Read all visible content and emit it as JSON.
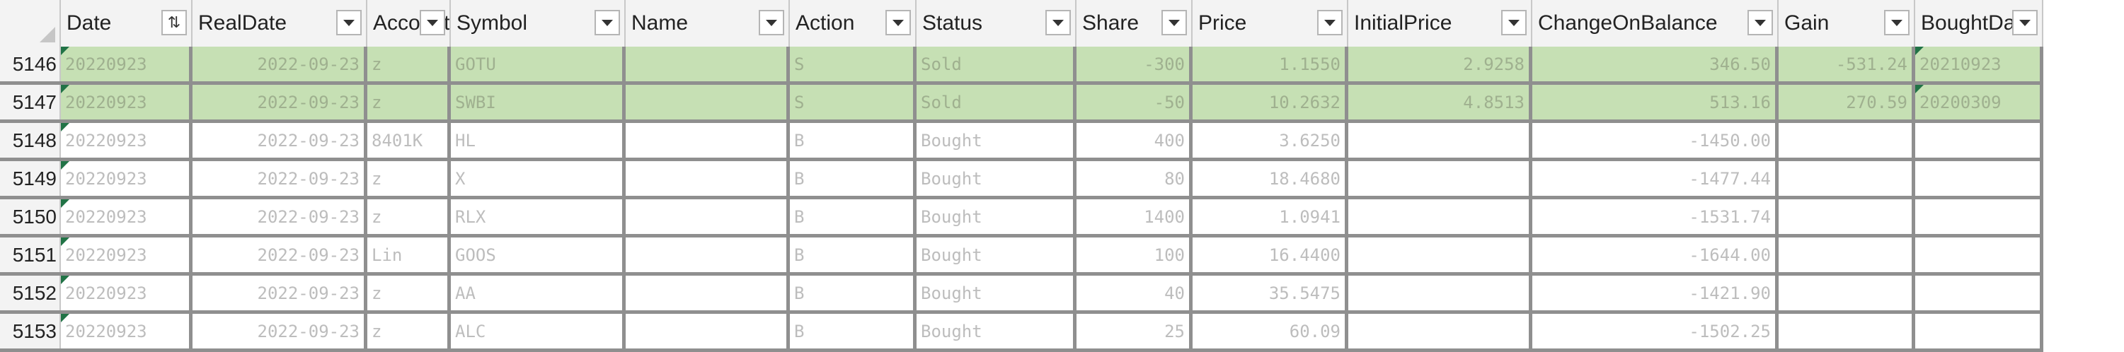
{
  "columns": [
    {
      "label": "Date",
      "sorted": true
    },
    {
      "label": "RealDate"
    },
    {
      "label": "Account"
    },
    {
      "label": "Symbol"
    },
    {
      "label": "Name"
    },
    {
      "label": "Action"
    },
    {
      "label": "Status"
    },
    {
      "label": "Share"
    },
    {
      "label": "Price"
    },
    {
      "label": "InitialPrice"
    },
    {
      "label": "ChangeOnBalance"
    },
    {
      "label": "Gain"
    },
    {
      "label": "BoughtDate"
    }
  ],
  "rows": [
    {
      "num": "5146",
      "highlight": true,
      "cells": [
        "20220923",
        "2022-09-23",
        "z",
        "GOTU",
        "",
        "S",
        "Sold",
        "-300",
        "1.1550",
        "2.9258",
        "346.50",
        "-531.24",
        "20210923"
      ]
    },
    {
      "num": "5147",
      "highlight": true,
      "cells": [
        "20220923",
        "2022-09-23",
        "z",
        "SWBI",
        "",
        "S",
        "Sold",
        "-50",
        "10.2632",
        "4.8513",
        "513.16",
        "270.59",
        "20200309"
      ]
    },
    {
      "num": "5148",
      "highlight": false,
      "cells": [
        "20220923",
        "2022-09-23",
        "8401K",
        "HL",
        "",
        "B",
        "Bought",
        "400",
        "3.6250",
        "",
        "-1450.00",
        "",
        ""
      ]
    },
    {
      "num": "5149",
      "highlight": false,
      "cells": [
        "20220923",
        "2022-09-23",
        "z",
        "X",
        "",
        "B",
        "Bought",
        "80",
        "18.4680",
        "",
        "-1477.44",
        "",
        ""
      ]
    },
    {
      "num": "5150",
      "highlight": false,
      "cells": [
        "20220923",
        "2022-09-23",
        "z",
        "RLX",
        "",
        "B",
        "Bought",
        "1400",
        "1.0941",
        "",
        "-1531.74",
        "",
        ""
      ]
    },
    {
      "num": "5151",
      "highlight": false,
      "cells": [
        "20220923",
        "2022-09-23",
        "Lin",
        "GOOS",
        "",
        "B",
        "Bought",
        "100",
        "16.4400",
        "",
        "-1644.00",
        "",
        ""
      ]
    },
    {
      "num": "5152",
      "highlight": false,
      "cells": [
        "20220923",
        "2022-09-23",
        "z",
        "AA",
        "",
        "B",
        "Bought",
        "40",
        "35.5475",
        "",
        "-1421.90",
        "",
        ""
      ]
    },
    {
      "num": "5153",
      "highlight": false,
      "cells": [
        "20220923",
        "2022-09-23",
        "z",
        "ALC",
        "",
        "B",
        "Bought",
        "25",
        "60.09",
        "",
        "-1502.25",
        "",
        ""
      ]
    }
  ],
  "colors": {
    "highlight": "#c6e0b4",
    "header_bg": "#f3f3f3",
    "grid": "#8f8f8f",
    "flag": "#217346"
  }
}
